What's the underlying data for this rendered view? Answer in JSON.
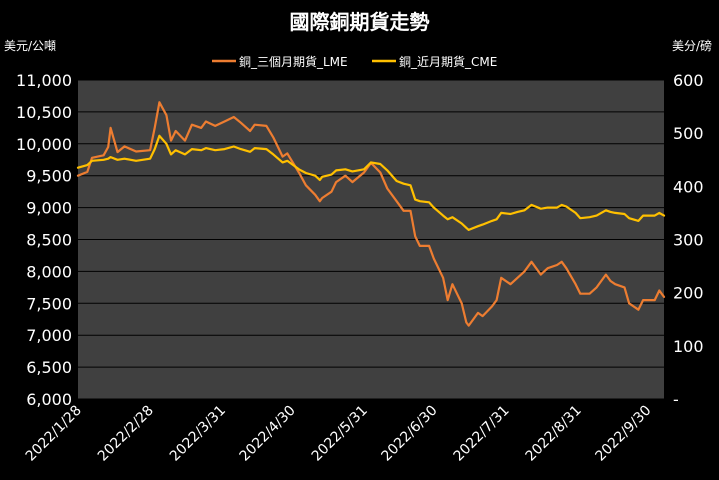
{
  "chart_data": {
    "type": "line",
    "title": "國際銅期貨走勢",
    "ylabel_left": "美元/公噸",
    "ylabel_right": "美分/磅",
    "x_start": "2022/1/28",
    "x_end": "2022/10/7",
    "x_tick_labels": [
      "2022/1/28",
      "2022/2/28",
      "2022/3/31",
      "2022/4/30",
      "2022/5/31",
      "2022/6/30",
      "2022/7/31",
      "2022/8/31",
      "2022/9/30"
    ],
    "ylim_left": [
      6000,
      11000
    ],
    "y_ticks_left": [
      "6,000",
      "6,500",
      "7,000",
      "7,500",
      "8,000",
      "8,500",
      "9,000",
      "9,500",
      "10,000",
      "10,500",
      "11,000"
    ],
    "ylim_right": [
      0,
      600
    ],
    "y_ticks_right": [
      "-",
      "100",
      "200",
      "300",
      "400",
      "500",
      "600"
    ],
    "series": [
      {
        "name": "銅_三個月期貨_LME",
        "color": "#ED7D31",
        "axis": "left",
        "points": [
          [
            "2022/1/28",
            9500
          ],
          [
            "2022/2/1",
            9560
          ],
          [
            "2022/2/3",
            9780
          ],
          [
            "2022/2/8",
            9820
          ],
          [
            "2022/2/10",
            9950
          ],
          [
            "2022/2/11",
            10250
          ],
          [
            "2022/2/14",
            9870
          ],
          [
            "2022/2/17",
            9960
          ],
          [
            "2022/2/22",
            9880
          ],
          [
            "2022/2/28",
            9900
          ],
          [
            "2022/3/2",
            10250
          ],
          [
            "2022/3/4",
            10650
          ],
          [
            "2022/3/7",
            10450
          ],
          [
            "2022/3/9",
            10050
          ],
          [
            "2022/3/11",
            10200
          ],
          [
            "2022/3/15",
            10050
          ],
          [
            "2022/3/18",
            10300
          ],
          [
            "2022/3/22",
            10250
          ],
          [
            "2022/3/24",
            10350
          ],
          [
            "2022/3/28",
            10280
          ],
          [
            "2022/4/1",
            10350
          ],
          [
            "2022/4/5",
            10420
          ],
          [
            "2022/4/8",
            10330
          ],
          [
            "2022/4/12",
            10200
          ],
          [
            "2022/4/14",
            10300
          ],
          [
            "2022/4/19",
            10280
          ],
          [
            "2022/4/22",
            10100
          ],
          [
            "2022/4/26",
            9800
          ],
          [
            "2022/4/28",
            9850
          ],
          [
            "2022/5/3",
            9550
          ],
          [
            "2022/5/6",
            9350
          ],
          [
            "2022/5/10",
            9200
          ],
          [
            "2022/5/12",
            9100
          ],
          [
            "2022/5/13",
            9150
          ],
          [
            "2022/5/17",
            9250
          ],
          [
            "2022/5/19",
            9400
          ],
          [
            "2022/5/23",
            9500
          ],
          [
            "2022/5/26",
            9400
          ],
          [
            "2022/5/31",
            9550
          ],
          [
            "2022/6/3",
            9700
          ],
          [
            "2022/6/7",
            9550
          ],
          [
            "2022/6/10",
            9300
          ],
          [
            "2022/6/14",
            9100
          ],
          [
            "2022/6/17",
            8950
          ],
          [
            "2022/6/20",
            8950
          ],
          [
            "2022/6/22",
            8550
          ],
          [
            "2022/6/24",
            8400
          ],
          [
            "2022/6/28",
            8400
          ],
          [
            "2022/6/30",
            8200
          ],
          [
            "2022/7/4",
            7900
          ],
          [
            "2022/7/6",
            7550
          ],
          [
            "2022/7/8",
            7800
          ],
          [
            "2022/7/12",
            7500
          ],
          [
            "2022/7/14",
            7200
          ],
          [
            "2022/7/15",
            7150
          ],
          [
            "2022/7/19",
            7350
          ],
          [
            "2022/7/21",
            7300
          ],
          [
            "2022/7/25",
            7450
          ],
          [
            "2022/7/27",
            7550
          ],
          [
            "2022/7/29",
            7900
          ],
          [
            "2022/8/2",
            7800
          ],
          [
            "2022/8/5",
            7900
          ],
          [
            "2022/8/8",
            8000
          ],
          [
            "2022/8/11",
            8150
          ],
          [
            "2022/8/15",
            7950
          ],
          [
            "2022/8/18",
            8050
          ],
          [
            "2022/8/22",
            8100
          ],
          [
            "2022/8/24",
            8150
          ],
          [
            "2022/8/26",
            8050
          ],
          [
            "2022/8/30",
            7800
          ],
          [
            "2022/9/1",
            7650
          ],
          [
            "2022/9/5",
            7650
          ],
          [
            "2022/9/8",
            7750
          ],
          [
            "2022/9/12",
            7950
          ],
          [
            "2022/9/14",
            7850
          ],
          [
            "2022/9/16",
            7800
          ],
          [
            "2022/9/20",
            7750
          ],
          [
            "2022/9/22",
            7500
          ],
          [
            "2022/9/26",
            7400
          ],
          [
            "2022/9/28",
            7550
          ],
          [
            "2022/10/3",
            7550
          ],
          [
            "2022/10/5",
            7700
          ],
          [
            "2022/10/7",
            7600
          ]
        ]
      },
      {
        "name": "銅_近月期貨_CME",
        "color": "#FFC000",
        "axis": "right",
        "points": [
          [
            "2022/1/28",
            435
          ],
          [
            "2022/2/1",
            440
          ],
          [
            "2022/2/3",
            448
          ],
          [
            "2022/2/8",
            450
          ],
          [
            "2022/2/10",
            452
          ],
          [
            "2022/2/11",
            455
          ],
          [
            "2022/2/14",
            450
          ],
          [
            "2022/2/17",
            452
          ],
          [
            "2022/2/22",
            448
          ],
          [
            "2022/2/28",
            452
          ],
          [
            "2022/3/2",
            470
          ],
          [
            "2022/3/4",
            495
          ],
          [
            "2022/3/7",
            480
          ],
          [
            "2022/3/9",
            460
          ],
          [
            "2022/3/11",
            468
          ],
          [
            "2022/3/15",
            460
          ],
          [
            "2022/3/18",
            470
          ],
          [
            "2022/3/22",
            468
          ],
          [
            "2022/3/24",
            472
          ],
          [
            "2022/3/28",
            468
          ],
          [
            "2022/4/1",
            470
          ],
          [
            "2022/4/5",
            475
          ],
          [
            "2022/4/8",
            470
          ],
          [
            "2022/4/12",
            465
          ],
          [
            "2022/4/14",
            472
          ],
          [
            "2022/4/19",
            470
          ],
          [
            "2022/4/22",
            460
          ],
          [
            "2022/4/26",
            445
          ],
          [
            "2022/4/28",
            448
          ],
          [
            "2022/5/3",
            432
          ],
          [
            "2022/5/6",
            425
          ],
          [
            "2022/5/10",
            420
          ],
          [
            "2022/5/12",
            412
          ],
          [
            "2022/5/13",
            418
          ],
          [
            "2022/5/17",
            422
          ],
          [
            "2022/5/19",
            430
          ],
          [
            "2022/5/23",
            432
          ],
          [
            "2022/5/26",
            428
          ],
          [
            "2022/5/31",
            432
          ],
          [
            "2022/6/3",
            445
          ],
          [
            "2022/6/7",
            442
          ],
          [
            "2022/6/10",
            430
          ],
          [
            "2022/6/14",
            410
          ],
          [
            "2022/6/17",
            405
          ],
          [
            "2022/6/20",
            402
          ],
          [
            "2022/6/22",
            375
          ],
          [
            "2022/6/24",
            372
          ],
          [
            "2022/6/28",
            370
          ],
          [
            "2022/6/30",
            360
          ],
          [
            "2022/7/4",
            345
          ],
          [
            "2022/7/6",
            338
          ],
          [
            "2022/7/8",
            342
          ],
          [
            "2022/7/12",
            330
          ],
          [
            "2022/7/14",
            322
          ],
          [
            "2022/7/15",
            318
          ],
          [
            "2022/7/19",
            325
          ],
          [
            "2022/7/21",
            328
          ],
          [
            "2022/7/25",
            335
          ],
          [
            "2022/7/27",
            338
          ],
          [
            "2022/7/29",
            350
          ],
          [
            "2022/8/2",
            348
          ],
          [
            "2022/8/5",
            352
          ],
          [
            "2022/8/8",
            355
          ],
          [
            "2022/8/11",
            365
          ],
          [
            "2022/8/15",
            358
          ],
          [
            "2022/8/18",
            360
          ],
          [
            "2022/8/22",
            360
          ],
          [
            "2022/8/24",
            365
          ],
          [
            "2022/8/26",
            362
          ],
          [
            "2022/8/30",
            350
          ],
          [
            "2022/9/1",
            340
          ],
          [
            "2022/9/5",
            342
          ],
          [
            "2022/9/8",
            345
          ],
          [
            "2022/9/12",
            355
          ],
          [
            "2022/9/14",
            352
          ],
          [
            "2022/9/16",
            350
          ],
          [
            "2022/9/20",
            348
          ],
          [
            "2022/9/22",
            340
          ],
          [
            "2022/9/26",
            335
          ],
          [
            "2022/9/28",
            345
          ],
          [
            "2022/10/3",
            345
          ],
          [
            "2022/10/5",
            350
          ],
          [
            "2022/10/7",
            345
          ]
        ]
      }
    ],
    "grid": true,
    "legend_position": "top"
  }
}
